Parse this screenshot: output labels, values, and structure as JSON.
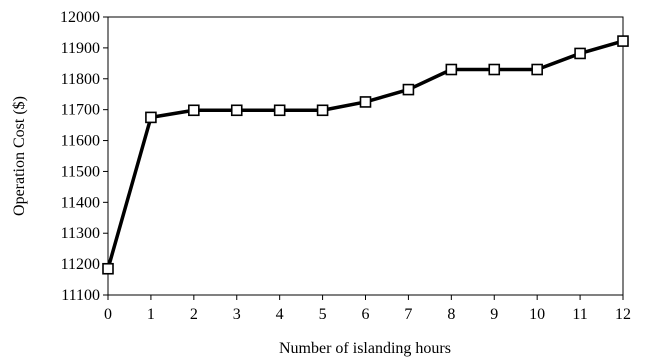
{
  "chart_data": {
    "type": "line",
    "title": "",
    "xlabel": "Number of islanding hours",
    "ylabel": "Operation Cost ($)",
    "x": [
      0,
      1,
      2,
      3,
      4,
      5,
      6,
      7,
      8,
      9,
      10,
      11,
      12
    ],
    "series": [
      {
        "values": [
          11185,
          11675,
          11698,
          11698,
          11698,
          11698,
          11725,
          11765,
          11830,
          11830,
          11830,
          11882,
          11922
        ],
        "color": "#000000",
        "marker": "square-open"
      }
    ],
    "xlim": [
      0,
      12
    ],
    "ylim": [
      11100,
      12000
    ],
    "yticks": [
      11100,
      11200,
      11300,
      11400,
      11500,
      11600,
      11700,
      11800,
      11900,
      12000
    ],
    "xticks": [
      0,
      1,
      2,
      3,
      4,
      5,
      6,
      7,
      8,
      9,
      10,
      11,
      12
    ],
    "grid": false,
    "legend": "none"
  }
}
